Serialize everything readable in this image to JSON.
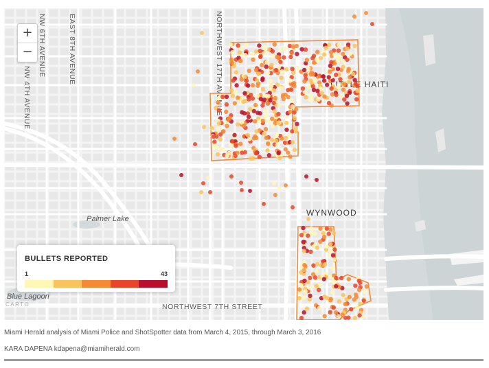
{
  "map": {
    "labels": {
      "ave_a": "NW 6TH AVENUE",
      "ave_b": "EAST 8TH AVENUE",
      "ave_c": "NW 4TH AVENUE",
      "ave_d": "NORTHWEST 17TH AVENUE",
      "little_haiti": "LITTLE HAITI",
      "wynwood": "WYNWOOD",
      "palmer_lake": "Palmer Lake",
      "blue_lagoon": "Blue Lagoon",
      "nw7th": "NORTHWEST 7TH STREET"
    },
    "attribution": "CARTO",
    "colors": {
      "background": "#f4f4f4",
      "water": "#d4dadc",
      "road": "#ffffff",
      "block": "#e7e7e7",
      "zone_outline": "#f08a3a"
    }
  },
  "zoom": {
    "in_label": "+",
    "out_label": "−"
  },
  "legend": {
    "title": "BULLETS REPORTED",
    "min_label": "1",
    "max_label": "43",
    "colors": [
      "#fff7b6",
      "#fbc35c",
      "#f68934",
      "#e8452a",
      "#b8102c"
    ]
  },
  "caption": {
    "source": "Miami Herald analysis of Miami Police and ShotSpotter data from March 4, 2015, through March 3, 2016",
    "credit": "KARA DAPENA kdapena@miamiherald.com"
  }
}
